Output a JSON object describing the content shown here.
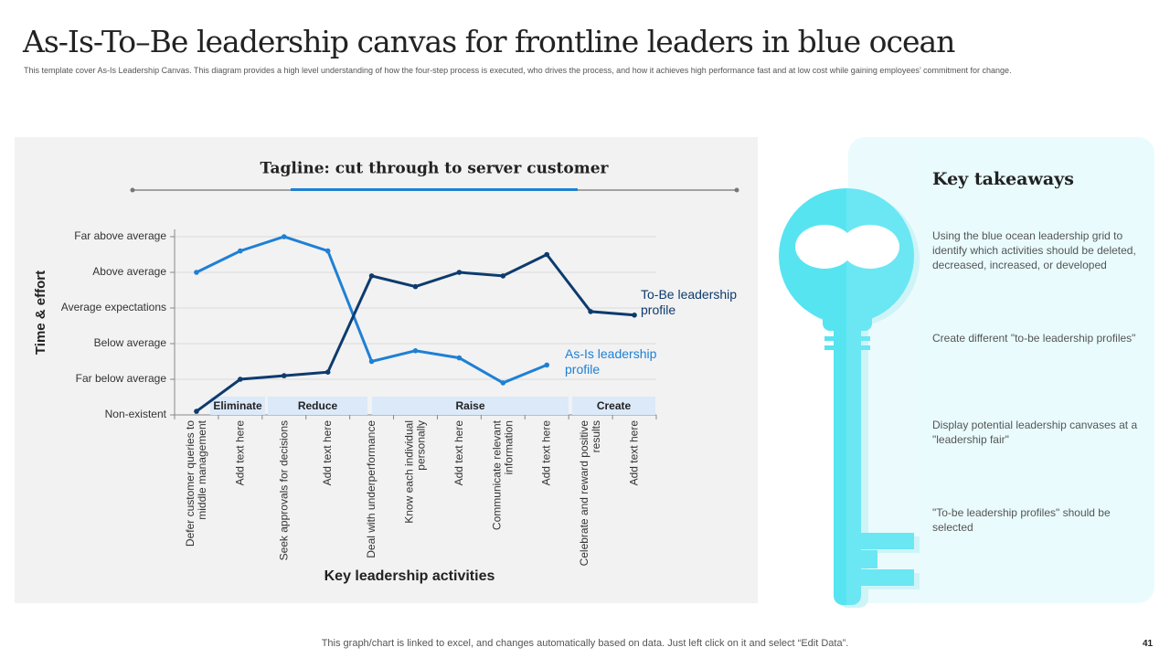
{
  "title": "As-Is-To–Be leadership canvas for frontline leaders in blue ocean",
  "subtitle": "This template cover As-Is Leadership Canvas. This diagram provides a high level understanding of how the four-step process is executed, who drives the process, and how it achieves high performance fast and at low cost while gaining employees’ commitment  for change.",
  "chart_data": {
    "type": "line",
    "title": "Tagline: cut through to server customer",
    "x_label": "Key leadership activities",
    "y_label": "Time & effort",
    "categories": [
      "Defer customer queries to middle management",
      "Add text here",
      "Seek approvals for decisions",
      "Add text here",
      "Deal with underperformance",
      "Know each individual personally",
      "Add text here",
      "Communicate relevant information",
      "Add text here",
      "Celebrate and reward positive results",
      "Add text here"
    ],
    "groups": [
      "Eliminate",
      "Reduce",
      "Raise",
      "Create"
    ],
    "ylim": [
      0,
      5
    ],
    "yticks": [
      {
        "value": 0,
        "label": "Non-existent"
      },
      {
        "value": 1,
        "label": "Far below average"
      },
      {
        "value": 2,
        "label": "Below average"
      },
      {
        "value": 3,
        "label": "Average expectations"
      },
      {
        "value": 4,
        "label": "Above average"
      },
      {
        "value": 5,
        "label": "Far above average"
      }
    ],
    "grid": true,
    "series": [
      {
        "name": "As-Is leadership profile",
        "color": "#1f80d4",
        "values": [
          4,
          4.6,
          5,
          4.6,
          1.5,
          1.8,
          1.6,
          0.9,
          1.4,
          null,
          null
        ]
      },
      {
        "name": "To-Be leadership profile",
        "color": "#0d3b6e",
        "values": [
          0.1,
          1.0,
          1.1,
          1.2,
          3.9,
          3.6,
          4.0,
          3.9,
          4.5,
          2.9,
          2.8
        ]
      }
    ]
  },
  "takeaways": {
    "title": "Key takeaways",
    "items": [
      "Using the blue ocean leadership grid to identify which activities should be deleted, decreased, increased, or developed",
      "Create different  \"to-be leadership profiles\"",
      "Display potential leadership canvases at a \"leadership fair\"",
      "\"To-be leadership profiles\" should be selected"
    ]
  },
  "footer": "This graph/chart is linked to excel,  and changes automatically based on data. Just left click on it and select “Edit Data”.",
  "page_number": "41"
}
